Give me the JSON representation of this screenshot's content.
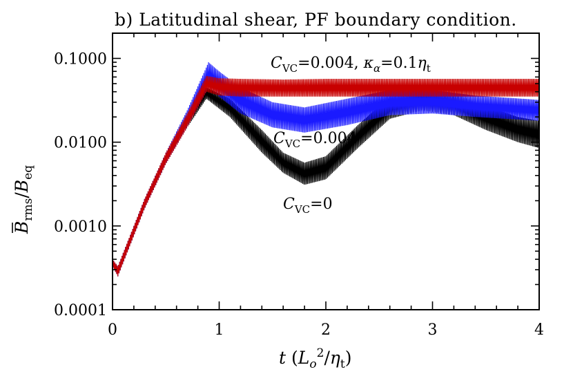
{
  "chart_data": {
    "type": "line",
    "title": "b) Latitudinal shear, PF boundary condition.",
    "xlabel": "t (L_o^2/η_t)",
    "ylabel": "B̄_rms/B_eq",
    "x_range": [
      0,
      4
    ],
    "y_range": [
      0.0001,
      0.2
    ],
    "y_scale": "log",
    "x_ticks": [
      "0",
      "1",
      "2",
      "3",
      "4"
    ],
    "y_ticks": [
      "0.0001",
      "0.0010",
      "0.0100",
      "0.1000"
    ],
    "series": [
      {
        "name": "C_VC=0",
        "color": "#000000",
        "upper": [
          [
            0,
            0.0004
          ],
          [
            0.05,
            0.00033
          ],
          [
            0.3,
            0.0021
          ],
          [
            0.5,
            0.0075
          ],
          [
            0.7,
            0.022
          ],
          [
            0.88,
            0.045
          ],
          [
            1.1,
            0.033
          ],
          [
            1.4,
            0.014
          ],
          [
            1.6,
            0.0075
          ],
          [
            1.8,
            0.0057
          ],
          [
            2.0,
            0.0068
          ],
          [
            2.3,
            0.016
          ],
          [
            2.6,
            0.035
          ],
          [
            2.9,
            0.044
          ],
          [
            3.2,
            0.038
          ],
          [
            3.5,
            0.027
          ],
          [
            3.8,
            0.02
          ],
          [
            4.0,
            0.018
          ]
        ],
        "lower": [
          [
            0,
            0.00033
          ],
          [
            0.05,
            0.00025
          ],
          [
            0.3,
            0.0016
          ],
          [
            0.5,
            0.0055
          ],
          [
            0.7,
            0.015
          ],
          [
            0.88,
            0.033
          ],
          [
            1.1,
            0.02
          ],
          [
            1.4,
            0.0075
          ],
          [
            1.6,
            0.0043
          ],
          [
            1.8,
            0.0031
          ],
          [
            2.0,
            0.0036
          ],
          [
            2.3,
            0.0085
          ],
          [
            2.6,
            0.019
          ],
          [
            2.9,
            0.024
          ],
          [
            3.2,
            0.021
          ],
          [
            3.5,
            0.014
          ],
          [
            3.8,
            0.01
          ],
          [
            4.0,
            0.0085
          ]
        ]
      },
      {
        "name": "C_VC=0.004",
        "color": "#1a1aff",
        "upper": [
          [
            0,
            0.0004
          ],
          [
            0.05,
            0.00033
          ],
          [
            0.3,
            0.0021
          ],
          [
            0.5,
            0.0075
          ],
          [
            0.7,
            0.024
          ],
          [
            0.9,
            0.09
          ],
          [
            1.0,
            0.07
          ],
          [
            1.2,
            0.045
          ],
          [
            1.5,
            0.03
          ],
          [
            1.8,
            0.026
          ],
          [
            2.2,
            0.033
          ],
          [
            2.6,
            0.042
          ],
          [
            3.0,
            0.042
          ],
          [
            3.4,
            0.036
          ],
          [
            4.0,
            0.032
          ]
        ],
        "lower": [
          [
            0,
            0.00033
          ],
          [
            0.05,
            0.00025
          ],
          [
            0.3,
            0.0016
          ],
          [
            0.5,
            0.0055
          ],
          [
            0.7,
            0.015
          ],
          [
            0.9,
            0.045
          ],
          [
            1.0,
            0.035
          ],
          [
            1.2,
            0.022
          ],
          [
            1.5,
            0.015
          ],
          [
            1.8,
            0.013
          ],
          [
            2.2,
            0.016
          ],
          [
            2.6,
            0.021
          ],
          [
            3.0,
            0.022
          ],
          [
            3.4,
            0.02
          ],
          [
            4.0,
            0.018
          ]
        ]
      },
      {
        "name": "C_VC=0.004, κ_α=0.1η_t",
        "color": "#c80000",
        "upper": [
          [
            0,
            0.0004
          ],
          [
            0.05,
            0.00033
          ],
          [
            0.3,
            0.0021
          ],
          [
            0.5,
            0.0075
          ],
          [
            0.7,
            0.022
          ],
          [
            0.88,
            0.062
          ],
          [
            1.0,
            0.058
          ],
          [
            1.2,
            0.057
          ],
          [
            1.6,
            0.056
          ],
          [
            2.0,
            0.057
          ],
          [
            3.0,
            0.057
          ],
          [
            4.0,
            0.057
          ]
        ],
        "lower": [
          [
            0,
            0.00033
          ],
          [
            0.05,
            0.00025
          ],
          [
            0.3,
            0.0016
          ],
          [
            0.5,
            0.0055
          ],
          [
            0.7,
            0.015
          ],
          [
            0.88,
            0.04
          ],
          [
            1.0,
            0.036
          ],
          [
            1.2,
            0.035
          ],
          [
            1.6,
            0.035
          ],
          [
            2.0,
            0.035
          ],
          [
            3.0,
            0.035
          ],
          [
            4.0,
            0.035
          ]
        ]
      }
    ],
    "annotations": [
      {
        "text": "C_VC=0.004,  κ_α=0.1η_t",
        "x": 1.5,
        "y": 0.1
      },
      {
        "text": "C_VC=0.004",
        "x": 1.52,
        "y": 0.0105
      },
      {
        "text": "C_VC=0",
        "x": 1.6,
        "y": 0.0013
      }
    ],
    "grid": false,
    "legend": "none"
  },
  "labels": {
    "title": "b) Latitudinal shear, PF boundary condition.",
    "x_axis": "t (L_o^2/η_t)",
    "y_axis": "B̄_rms/B_eq",
    "annot_red": "C_VC=0.004, κ_α=0.1η_t",
    "annot_blue": "C_VC=0.004",
    "annot_black": "C_VC=0"
  }
}
